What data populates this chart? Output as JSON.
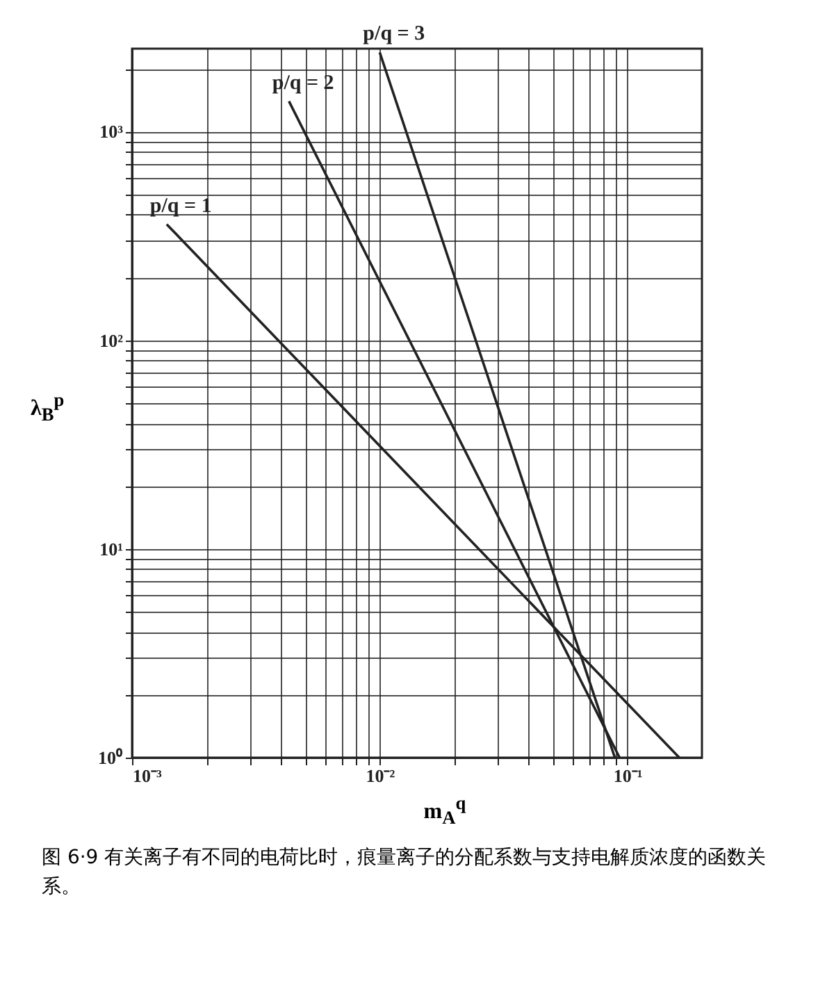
{
  "chart_data": {
    "type": "line",
    "xlabel": "m$_{A}$$^{q}$",
    "ylabel": "λ$_{B}$$^{p}$",
    "log": "xy",
    "grid": true,
    "marker": "none",
    "line_style": "solid",
    "legend": false,
    "xlim": [
      0.001,
      0.2
    ],
    "ylim": [
      1,
      2500
    ],
    "xticks": [
      {
        "value": 0.001,
        "label": "10⁻³"
      },
      {
        "value": 0.002,
        "label": null
      },
      {
        "value": 0.003,
        "label": null
      },
      {
        "value": 0.004,
        "label": null
      },
      {
        "value": 0.005,
        "label": null
      },
      {
        "value": 0.006,
        "label": null
      },
      {
        "value": 0.007,
        "label": null
      },
      {
        "value": 0.008,
        "label": null
      },
      {
        "value": 0.009,
        "label": null
      },
      {
        "value": 0.01,
        "label": "10⁻²"
      },
      {
        "value": 0.02,
        "label": null
      },
      {
        "value": 0.03,
        "label": null
      },
      {
        "value": 0.04,
        "label": null
      },
      {
        "value": 0.05,
        "label": null
      },
      {
        "value": 0.06,
        "label": null
      },
      {
        "value": 0.07,
        "label": null
      },
      {
        "value": 0.08,
        "label": null
      },
      {
        "value": 0.09,
        "label": null
      },
      {
        "value": 0.1,
        "label": "10⁻¹"
      }
    ],
    "yticks": [
      {
        "value": 1,
        "label": "10⁰"
      },
      {
        "value": 2,
        "label": null
      },
      {
        "value": 3,
        "label": null
      },
      {
        "value": 4,
        "label": null
      },
      {
        "value": 5,
        "label": null
      },
      {
        "value": 6,
        "label": null
      },
      {
        "value": 7,
        "label": null
      },
      {
        "value": 8,
        "label": null
      },
      {
        "value": 9,
        "label": null
      },
      {
        "value": 10,
        "label": "10¹"
      },
      {
        "value": 20,
        "label": null
      },
      {
        "value": 30,
        "label": null
      },
      {
        "value": 40,
        "label": null
      },
      {
        "value": 50,
        "label": null
      },
      {
        "value": 60,
        "label": null
      },
      {
        "value": 70,
        "label": null
      },
      {
        "value": 80,
        "label": null
      },
      {
        "value": 90,
        "label": null
      },
      {
        "value": 100,
        "label": "10²"
      },
      {
        "value": 200,
        "label": null
      },
      {
        "value": 300,
        "label": null
      },
      {
        "value": 400,
        "label": null
      },
      {
        "value": 500,
        "label": null
      },
      {
        "value": 600,
        "label": null
      },
      {
        "value": 700,
        "label": null
      },
      {
        "value": 800,
        "label": null
      },
      {
        "value": 900,
        "label": null
      },
      {
        "value": 1000,
        "label": "10³"
      },
      {
        "value": 2000,
        "label": null
      }
    ],
    "series": [
      {
        "color": "#222222",
        "x": [
          0.00138,
          0.162
        ],
        "values": [
          360,
          1
        ]
      },
      {
        "color": "#222222",
        "x": [
          0.0043,
          0.093
        ],
        "values": [
          1400,
          1
        ]
      },
      {
        "color": "#222222",
        "x": [
          0.01,
          0.089
        ],
        "values": [
          2400,
          1
        ]
      }
    ],
    "annotations": [
      "p/q = 1",
      "p/q = 2",
      "p/q = 3",
      "图 6·9 有关离子有不同的电荷比时，痕量离子的分配系数与支持电解质浓度的函数关系。"
    ]
  }
}
